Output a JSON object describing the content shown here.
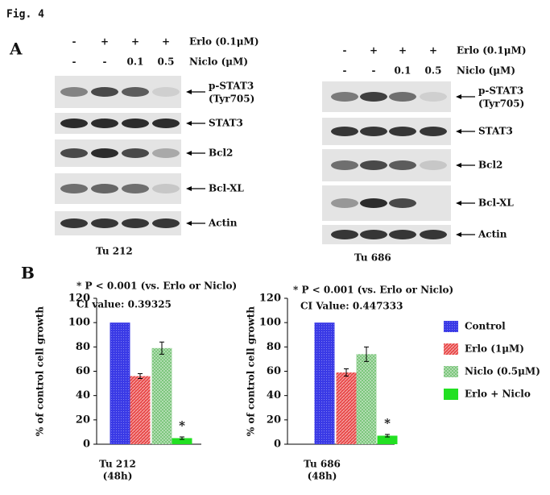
{
  "figure_label": "Fig. 4",
  "panel_a": {
    "label": "A",
    "blots": [
      {
        "cell_line": "Tu 212",
        "treatments": [
          {
            "name": "Erlo (0.1μM)",
            "levels": [
              "-",
              "+",
              "+",
              "+"
            ]
          },
          {
            "name": "Niclo (μM)",
            "levels": [
              "-",
              "-",
              "0.1",
              "0.5"
            ]
          }
        ],
        "proteins": [
          {
            "name": "p-STAT3",
            "sub": "(Tyr705)"
          },
          {
            "name": "STAT3"
          },
          {
            "name": "Bcl2"
          },
          {
            "name": "Bcl-XL"
          },
          {
            "name": "Actin"
          }
        ]
      },
      {
        "cell_line": "Tu 686",
        "treatments": [
          {
            "name": "Erlo (0.1μM)",
            "levels": [
              "-",
              "+",
              "+",
              "+"
            ]
          },
          {
            "name": "Niclo (μM)",
            "levels": [
              "-",
              "-",
              "0.1",
              "0.5"
            ]
          }
        ],
        "proteins": [
          {
            "name": "p-STAT3",
            "sub": "(Tyr705)"
          },
          {
            "name": "STAT3"
          },
          {
            "name": "Bcl2"
          },
          {
            "name": "Bcl-XL"
          },
          {
            "name": "Actin"
          }
        ]
      }
    ]
  },
  "panel_b": {
    "label": "B",
    "legend": [
      {
        "name": "Control",
        "color": "#3a3ae6"
      },
      {
        "name": "Erlo (1μM)",
        "color": "#e84848"
      },
      {
        "name": "Niclo (0.5μM)",
        "color": "#6fc06f"
      },
      {
        "name": "Erlo + Niclo",
        "color": "#22e022"
      }
    ]
  },
  "chart_data": [
    {
      "type": "bar",
      "annotation": "* P < 0.001 (vs. Erlo  or Niclo)",
      "ci": "CI value: 0.39325",
      "ylabel": "% of control cell growth",
      "xlabel": [
        "Tu 212",
        "(48h)"
      ],
      "values": [
        100,
        56,
        79,
        5
      ],
      "errors": [
        0,
        2,
        5,
        1
      ],
      "significance": "*",
      "ylim": [
        0,
        120
      ],
      "yticks": [
        0,
        20,
        40,
        60,
        80,
        100,
        120
      ]
    },
    {
      "type": "bar",
      "annotation": "* P < 0.001 (vs. Erlo  or Niclo)",
      "ci": "CI Value: 0.447333",
      "ylabel": "% of control cell growth",
      "xlabel": [
        "Tu 686",
        "(48h)"
      ],
      "values": [
        100,
        59,
        74,
        7
      ],
      "errors": [
        0,
        3,
        6,
        1
      ],
      "significance": "*",
      "ylim": [
        0,
        120
      ],
      "yticks": [
        0,
        20,
        40,
        60,
        80,
        100,
        120
      ]
    }
  ]
}
